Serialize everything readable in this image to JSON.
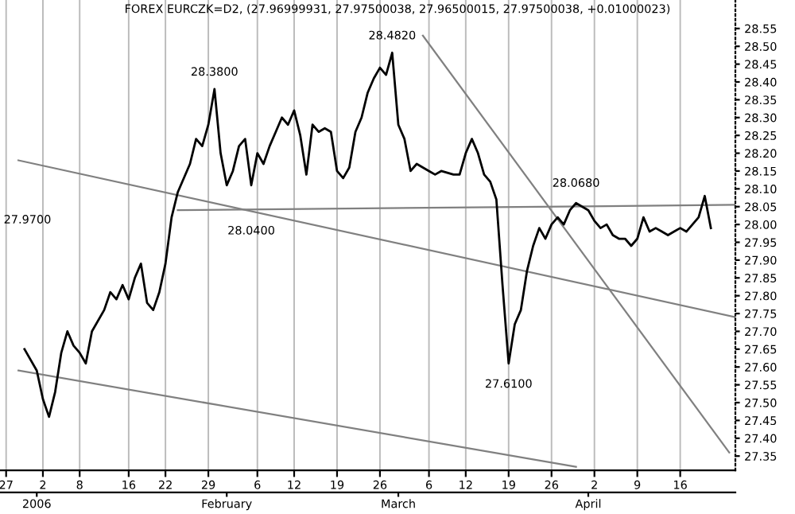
{
  "chart_data": {
    "type": "line",
    "title": "FOREX EURCZK=D2, (27.96999931, 27.97500038, 27.96500015, 27.97500038, +0.01000023)",
    "series": [
      {
        "color": "#000000",
        "x": [
          "2005-12-30",
          "2006-01-01",
          "2006-01-02",
          "2006-01-03",
          "2006-01-04",
          "2006-01-05",
          "2006-01-06",
          "2006-01-07",
          "2006-01-08",
          "2006-01-09",
          "2006-01-10",
          "2006-01-12",
          "2006-01-13",
          "2006-01-14",
          "2006-01-15",
          "2006-01-16",
          "2006-01-17",
          "2006-01-18",
          "2006-01-19",
          "2006-01-20",
          "2006-01-21",
          "2006-01-22",
          "2006-01-23",
          "2006-01-24",
          "2006-01-26",
          "2006-01-27",
          "2006-01-28",
          "2006-01-29",
          "2006-01-30",
          "2006-01-31",
          "2006-02-01",
          "2006-02-02",
          "2006-02-03",
          "2006-02-04",
          "2006-02-05",
          "2006-02-06",
          "2006-02-07",
          "2006-02-08",
          "2006-02-09",
          "2006-02-10",
          "2006-02-11",
          "2006-02-12",
          "2006-02-13",
          "2006-02-14",
          "2006-02-15",
          "2006-02-16",
          "2006-02-17",
          "2006-02-18",
          "2006-02-19",
          "2006-02-20",
          "2006-02-21",
          "2006-02-22",
          "2006-02-23",
          "2006-02-24",
          "2006-02-25",
          "2006-02-26",
          "2006-02-27",
          "2006-02-28",
          "2006-03-01",
          "2006-03-02",
          "2006-03-03",
          "2006-03-04",
          "2006-03-05",
          "2006-03-06",
          "2006-03-07",
          "2006-03-08",
          "2006-03-10",
          "2006-03-11",
          "2006-03-12",
          "2006-03-13",
          "2006-03-14",
          "2006-03-15",
          "2006-03-16",
          "2006-03-17",
          "2006-03-18",
          "2006-03-19",
          "2006-03-20",
          "2006-03-21",
          "2006-03-22",
          "2006-03-23",
          "2006-03-24",
          "2006-03-25",
          "2006-03-26",
          "2006-03-27",
          "2006-03-28",
          "2006-03-29",
          "2006-03-30",
          "2006-03-31",
          "2006-04-01",
          "2006-04-02",
          "2006-04-03",
          "2006-04-04",
          "2006-04-05",
          "2006-04-06",
          "2006-04-07",
          "2006-04-08",
          "2006-04-09",
          "2006-04-10",
          "2006-04-11",
          "2006-04-12",
          "2006-04-13",
          "2006-04-14",
          "2006-04-15",
          "2006-04-16",
          "2006-04-17",
          "2006-04-18",
          "2006-04-19",
          "2006-04-20",
          "2006-04-21"
        ],
        "values": [
          27.65,
          27.59,
          27.51,
          27.46,
          27.53,
          27.64,
          27.7,
          27.66,
          27.64,
          27.61,
          27.7,
          27.76,
          27.81,
          27.79,
          27.83,
          27.79,
          27.85,
          27.89,
          27.78,
          27.76,
          27.81,
          27.89,
          28.02,
          28.09,
          28.17,
          28.24,
          28.22,
          28.28,
          28.38,
          28.2,
          28.11,
          28.15,
          28.22,
          28.24,
          28.11,
          28.2,
          28.17,
          28.22,
          28.26,
          28.3,
          28.28,
          28.32,
          28.25,
          28.14,
          28.28,
          28.26,
          28.27,
          28.26,
          28.15,
          28.13,
          28.16,
          28.26,
          28.3,
          28.37,
          28.41,
          28.44,
          28.42,
          28.482,
          28.28,
          28.24,
          28.15,
          28.17,
          28.16,
          28.15,
          28.14,
          28.15,
          28.14,
          28.14,
          28.2,
          28.24,
          28.2,
          28.14,
          28.12,
          28.07,
          27.83,
          27.61,
          27.72,
          27.76,
          27.87,
          27.94,
          27.99,
          27.96,
          28.0,
          28.02,
          28.0,
          28.04,
          28.06,
          28.05,
          28.04,
          28.01,
          27.99,
          28.0,
          27.97,
          27.96,
          27.96,
          27.94,
          27.96,
          28.02,
          27.98,
          27.99,
          27.98,
          27.97,
          27.98,
          27.99,
          27.98,
          28.0,
          28.02,
          28.08,
          27.99
        ]
      },
      {
        "type": "line",
        "color": "#808080",
        "x": [
          "2005-12-29",
          "2006-04-25"
        ],
        "values": [
          28.18,
          27.74
        ]
      },
      {
        "type": "line",
        "color": "#808080",
        "x": [
          "2005-12-29",
          "2006-03-30"
        ],
        "values": [
          27.59,
          27.32
        ]
      },
      {
        "type": "line",
        "color": "#808080",
        "x": [
          "2006-03-05",
          "2006-04-24"
        ],
        "values": [
          28.53,
          27.36
        ]
      },
      {
        "type": "line",
        "color": "#808080",
        "x": [
          "2006-01-24",
          "2006-04-25"
        ],
        "values": [
          28.04,
          28.055
        ]
      }
    ],
    "annotations": [
      {
        "text": "28.3800",
        "x": "2006-01-30",
        "y": 28.38
      },
      {
        "text": "28.4820",
        "x": "2006-02-28",
        "y": 28.482
      },
      {
        "text": "28.0400",
        "x": "2006-02-05",
        "y": 28.04
      },
      {
        "text": "28.0680",
        "x": "2006-03-30",
        "y": 28.068
      },
      {
        "text": "27.6100",
        "x": "2006-03-19",
        "y": 27.61
      },
      "27.9700"
    ],
    "xlim": [
      "2005-12-26",
      "2006-04-25"
    ],
    "xticks": [
      {
        "value": "2005-12-27",
        "label": "27"
      },
      {
        "value": "2006-01-02",
        "label": "2"
      },
      {
        "value": "2006-01-08",
        "label": "8"
      },
      {
        "value": "2006-01-16",
        "label": "16"
      },
      {
        "value": "2006-01-22",
        "label": "22"
      },
      {
        "value": "2006-01-29",
        "label": "29"
      },
      {
        "value": "2006-02-06",
        "label": "6"
      },
      {
        "value": "2006-02-12",
        "label": "12"
      },
      {
        "value": "2006-02-19",
        "label": "19"
      },
      {
        "value": "2006-02-26",
        "label": "26"
      },
      {
        "value": "2006-03-06",
        "label": "6"
      },
      {
        "value": "2006-03-12",
        "label": "12"
      },
      {
        "value": "2006-03-19",
        "label": "19"
      },
      {
        "value": "2006-03-26",
        "label": "26"
      },
      {
        "value": "2006-04-02",
        "label": "2"
      },
      {
        "value": "2006-04-09",
        "label": "9"
      },
      {
        "value": "2006-04-16",
        "label": "16"
      }
    ],
    "x2lim": [
      "2005-12-26",
      "2006-04-25"
    ],
    "x2ticks": [
      {
        "value": "2006-01-01",
        "label": "2006"
      },
      {
        "value": "2006-02-01",
        "label": "February"
      },
      {
        "value": "2006-03-01",
        "label": "March"
      },
      {
        "value": "2006-04-01",
        "label": "April"
      }
    ],
    "ylim": [
      27.31,
      28.63
    ],
    "yticks": [
      {
        "value": 27.35,
        "label": "27.35"
      },
      {
        "value": 27.4,
        "label": "27.40"
      },
      {
        "value": 27.45,
        "label": "27.45"
      },
      {
        "value": 27.5,
        "label": "27.50"
      },
      {
        "value": 27.55,
        "label": "27.55"
      },
      {
        "value": 27.6,
        "label": "27.60"
      },
      {
        "value": 27.65,
        "label": "27.65"
      },
      {
        "value": 27.7,
        "label": "27.70"
      },
      {
        "value": 27.75,
        "label": "27.75"
      },
      {
        "value": 27.8,
        "label": "27.80"
      },
      {
        "value": 27.85,
        "label": "27.85"
      },
      {
        "value": 27.9,
        "label": "27.90"
      },
      {
        "value": 27.95,
        "label": "27.95"
      },
      {
        "value": 28.0,
        "label": "28.00"
      },
      {
        "value": 28.05,
        "label": "28.05"
      },
      {
        "value": 28.1,
        "label": "28.10"
      },
      {
        "value": 28.15,
        "label": "28.15"
      },
      {
        "value": 28.2,
        "label": "28.20"
      },
      {
        "value": 28.25,
        "label": "28.25"
      },
      {
        "value": 28.3,
        "label": "28.30"
      },
      {
        "value": 28.35,
        "label": "28.35"
      },
      {
        "value": 28.4,
        "label": "28.40"
      },
      {
        "value": 28.45,
        "label": "28.45"
      },
      {
        "value": 28.5,
        "label": "28.50"
      },
      {
        "value": 28.55,
        "label": "28.55"
      }
    ],
    "grid": "x",
    "legend": false,
    "marker": "none",
    "line_style": "solid"
  }
}
